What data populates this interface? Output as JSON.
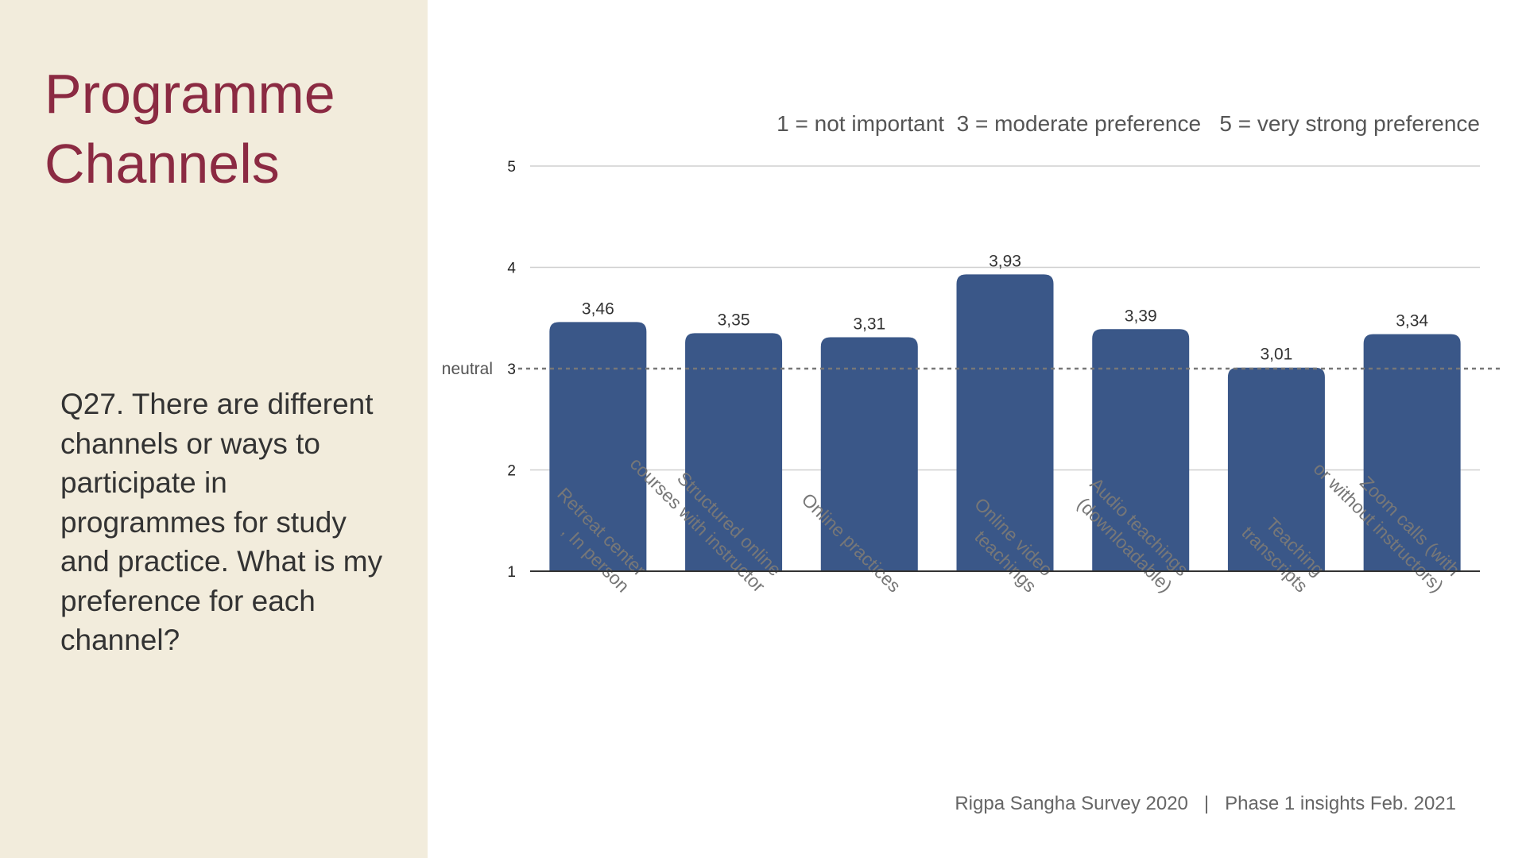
{
  "slide": {
    "title_line1": "Programme",
    "title_line2": "Channels",
    "question": "Q27. There are different channels or ways to participate in programmes for study and practice. What is my preference for each channel?",
    "scale_note": "1 = not important  3 = moderate preference   5 = very strong preference",
    "footer": "Rigpa Sangha Survey 2020   |   Phase 1 insights Feb. 2021"
  },
  "colors": {
    "bar": "#3a5788",
    "title": "#8b2a42",
    "panel": "#f2ecdc"
  },
  "chart_data": {
    "type": "bar",
    "title": "",
    "xlabel": "",
    "ylabel": "",
    "ylim": [
      1,
      5
    ],
    "yticks": [
      1,
      2,
      3,
      4,
      5
    ],
    "grid": true,
    "reference_line": {
      "value": 3,
      "label": "neutral",
      "style": "dashed"
    },
    "categories": [
      [
        "Retreat center",
        ", In person"
      ],
      [
        "Structured online",
        "courses with instructor"
      ],
      [
        "Online practices"
      ],
      [
        "Online video",
        "teachings"
      ],
      [
        "Audio teachings",
        "(downloadable)"
      ],
      [
        "Teaching",
        "transcripts"
      ],
      [
        "Zoom calls (with",
        "or without instructors)"
      ]
    ],
    "values": [
      3.46,
      3.35,
      3.31,
      3.93,
      3.39,
      3.01,
      3.34
    ],
    "value_labels": [
      "3,46",
      "3,35",
      "3,31",
      "3,93",
      "3,39",
      "3,01",
      "3,34"
    ]
  }
}
